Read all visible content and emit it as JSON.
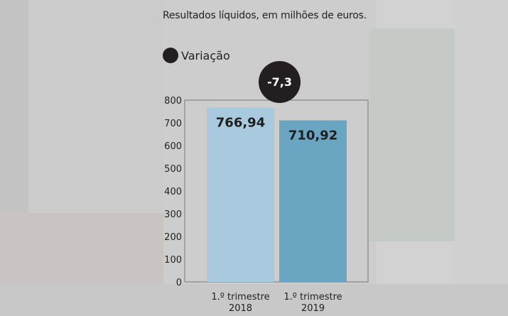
{
  "chart_data": {
    "type": "bar",
    "title": "Resultados líquidos, em milhões de euros.",
    "categories": [
      [
        "1.º trimestre",
        "2018"
      ],
      [
        "1.º trimestre",
        "2019"
      ]
    ],
    "values": [
      766.94,
      710.92
    ],
    "value_labels": [
      "766,94",
      "710,92"
    ],
    "bar_colors": [
      "#a9cade",
      "#6aa5c1"
    ],
    "y_ticks": [
      0,
      100,
      200,
      300,
      400,
      500,
      600,
      700,
      800
    ],
    "ylim": [
      0,
      800
    ],
    "legend": {
      "label": "Variação",
      "color": "#231f20"
    },
    "variation_label": "-7,3",
    "grid": false
  }
}
